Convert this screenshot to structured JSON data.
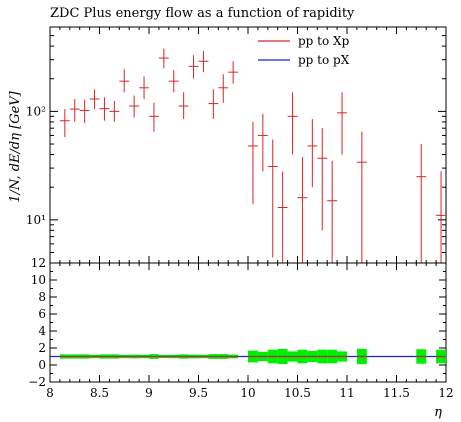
{
  "chart_data": {
    "type": "scatter",
    "title": "ZDC Plus energy flow as a function of rapidity",
    "xlabel": "η",
    "ylabel": "1/N, dE/dη [GeV]",
    "xlim": [
      8,
      12
    ],
    "x_ticks": [
      8,
      8.5,
      9,
      9.5,
      10,
      10.5,
      11,
      11.5,
      12
    ],
    "x_tick_labels": [
      "8",
      "8.5",
      "9",
      "9.5",
      "10",
      "10.5",
      "11",
      "11.5",
      "12"
    ],
    "y_scale": "log",
    "ylim": [
      4,
      600
    ],
    "y_ticks": [
      10,
      100
    ],
    "y_tick_labels": [
      "10¹",
      "10²"
    ],
    "grid": false,
    "legend_position": "top-right",
    "colors": {
      "series_a": "#d62728",
      "series_b": "#1f1fd6",
      "ratio_band": "#00ee00"
    },
    "series": [
      {
        "name": "pp to Xp",
        "color": "#d62728",
        "x": [
          8.15,
          8.25,
          8.35,
          8.45,
          8.55,
          8.65,
          8.75,
          8.85,
          8.95,
          9.05,
          9.15,
          9.25,
          9.35,
          9.45,
          9.55,
          9.65,
          9.75,
          9.85,
          10.05,
          10.15,
          10.25,
          10.35,
          10.45,
          10.55,
          10.65,
          10.75,
          10.85,
          10.95,
          11.15,
          11.75,
          11.95
        ],
        "y": [
          82,
          105,
          102,
          130,
          106,
          100,
          190,
          112,
          165,
          90,
          310,
          190,
          112,
          260,
          290,
          118,
          165,
          230,
          48,
          60,
          31,
          13,
          90,
          16,
          48,
          37,
          15,
          97,
          34,
          25,
          11
        ],
        "y_low": [
          58,
          80,
          78,
          105,
          82,
          80,
          150,
          88,
          130,
          65,
          250,
          150,
          85,
          200,
          230,
          85,
          120,
          180,
          14,
          28,
          4.5,
          4,
          40,
          4,
          20,
          8,
          4,
          40,
          4,
          4,
          4
        ],
        "y_high": [
          105,
          130,
          128,
          160,
          135,
          125,
          245,
          140,
          210,
          120,
          380,
          240,
          150,
          330,
          360,
          160,
          220,
          290,
          80,
          95,
          55,
          28,
          150,
          38,
          85,
          70,
          35,
          150,
          65,
          50,
          28
        ]
      },
      {
        "name": "pp to pX",
        "color": "#1f1fd6",
        "x": [],
        "y": []
      }
    ],
    "ratio": {
      "ylim": [
        -2,
        12
      ],
      "y_ticks": [
        -2,
        0,
        2,
        4,
        6,
        8,
        10,
        12
      ],
      "y_tick_labels": [
        "−2",
        "0",
        "2",
        "4",
        "6",
        "8",
        "10",
        "12"
      ],
      "reference_line": 1,
      "x": [
        8.15,
        8.25,
        8.35,
        8.45,
        8.55,
        8.65,
        8.75,
        8.85,
        8.95,
        9.05,
        9.15,
        9.25,
        9.35,
        9.45,
        9.55,
        9.65,
        9.75,
        9.85,
        10.05,
        10.15,
        10.25,
        10.35,
        10.45,
        10.55,
        10.65,
        10.75,
        10.85,
        10.95,
        11.15,
        11.75,
        11.95
      ],
      "y": [
        1,
        1,
        1,
        1,
        1,
        1,
        1,
        1,
        1,
        1,
        1,
        1,
        1,
        1,
        1,
        1,
        1,
        1,
        1,
        1,
        1,
        1,
        1,
        1,
        1,
        1,
        1,
        1,
        1,
        1,
        1
      ],
      "band_low": [
        0.75,
        0.75,
        0.75,
        0.8,
        0.75,
        0.75,
        0.8,
        0.78,
        0.8,
        0.72,
        0.82,
        0.8,
        0.75,
        0.78,
        0.8,
        0.72,
        0.72,
        0.78,
        0.3,
        0.45,
        0.2,
        0.1,
        0.4,
        0.2,
        0.35,
        0.2,
        0.2,
        0.4,
        0.1,
        0.15,
        0.2
      ],
      "band_high": [
        1.25,
        1.25,
        1.25,
        1.2,
        1.25,
        1.25,
        1.2,
        1.22,
        1.2,
        1.28,
        1.18,
        1.2,
        1.25,
        1.22,
        1.2,
        1.28,
        1.28,
        1.22,
        1.7,
        1.55,
        1.8,
        1.9,
        1.6,
        1.8,
        1.65,
        1.8,
        1.8,
        1.6,
        1.9,
        1.85,
        1.8
      ]
    }
  }
}
